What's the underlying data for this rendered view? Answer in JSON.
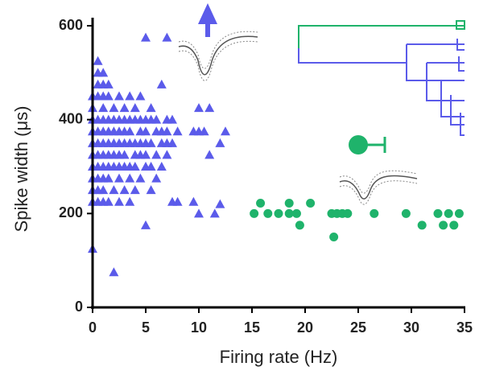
{
  "chart_data": {
    "type": "scatter",
    "x_label": "Firing rate (Hz)",
    "y_label": "Spike width (μs)",
    "xlim": [
      0,
      35
    ],
    "xticks": [
      0,
      5,
      10,
      15,
      20,
      25,
      30,
      35
    ],
    "ylim": [
      0,
      600
    ],
    "yticks": [
      0,
      200,
      400,
      600
    ],
    "series": [
      {
        "color": "#5b5bea",
        "marker": "triangle",
        "x": [
          0,
          0,
          0,
          0,
          0,
          0,
          0,
          0,
          0,
          0,
          0,
          0.5,
          0.5,
          0.5,
          0.5,
          0.5,
          0.5,
          0.5,
          0.5,
          0.5,
          0.5,
          0.5,
          0.5,
          1,
          1,
          1,
          1,
          1,
          1,
          1,
          1,
          1,
          1,
          1,
          1,
          1.5,
          1.5,
          1.5,
          1.5,
          1.5,
          1.5,
          1.5,
          1.5,
          1.5,
          2,
          2,
          2,
          2,
          2,
          2,
          2,
          2,
          2.5,
          2.5,
          2.5,
          2.5,
          2.5,
          2.5,
          2.5,
          2.5,
          3,
          3,
          3,
          3,
          3,
          3,
          3,
          3.5,
          3.5,
          3.5,
          3.5,
          3.5,
          3.5,
          3.5,
          4,
          4,
          4,
          4,
          4,
          4,
          4.5,
          4.5,
          4.5,
          4.5,
          4.5,
          4.5,
          5,
          5,
          5,
          5,
          5,
          5,
          5,
          5.5,
          5.5,
          5.5,
          5.5,
          5.5,
          6,
          6,
          6,
          6,
          6.5,
          6.5,
          6.5,
          6.5,
          7,
          7,
          7,
          7,
          7,
          7.5,
          7.5,
          7.5,
          8,
          8,
          9.5,
          9.5,
          10,
          10,
          10,
          10.5,
          11,
          11,
          11.5,
          12,
          12,
          12.5
        ],
        "values": [
          225,
          250,
          275,
          300,
          325,
          350,
          375,
          400,
          425,
          450,
          125,
          225,
          250,
          275,
          300,
          325,
          350,
          375,
          400,
          450,
          475,
          500,
          525,
          225,
          250,
          275,
          300,
          325,
          350,
          375,
          400,
          425,
          450,
          475,
          500,
          225,
          275,
          300,
          325,
          350,
          375,
          400,
          450,
          475,
          250,
          300,
          325,
          350,
          375,
          400,
          425,
          75,
          225,
          275,
          300,
          325,
          350,
          375,
          400,
          450,
          250,
          300,
          325,
          350,
          375,
          400,
          425,
          225,
          275,
          300,
          350,
          375,
          400,
          450,
          250,
          300,
          325,
          350,
          400,
          425,
          275,
          325,
          350,
          375,
          400,
          450,
          300,
          325,
          350,
          375,
          400,
          175,
          575,
          250,
          300,
          350,
          400,
          425,
          275,
          325,
          375,
          400,
          300,
          350,
          375,
          475,
          325,
          350,
          375,
          400,
          575,
          225,
          350,
          400,
          225,
          375,
          225,
          375,
          200,
          375,
          425,
          375,
          325,
          425,
          200,
          220,
          350,
          375
        ]
      },
      {
        "color": "#1fb36b",
        "marker": "circle",
        "x": [
          15.2,
          15.8,
          16.5,
          17.5,
          18.5,
          18.5,
          19.2,
          19.5,
          20.5,
          22.5,
          22.7,
          23,
          23.5,
          24,
          26.5,
          29.5,
          31,
          32.5,
          33,
          33.5,
          34,
          34.5
        ],
        "values": [
          200,
          222,
          200,
          200,
          222,
          200,
          200,
          175,
          222,
          200,
          150,
          200,
          200,
          200,
          200,
          200,
          175,
          200,
          175,
          200,
          175,
          200
        ]
      }
    ]
  }
}
